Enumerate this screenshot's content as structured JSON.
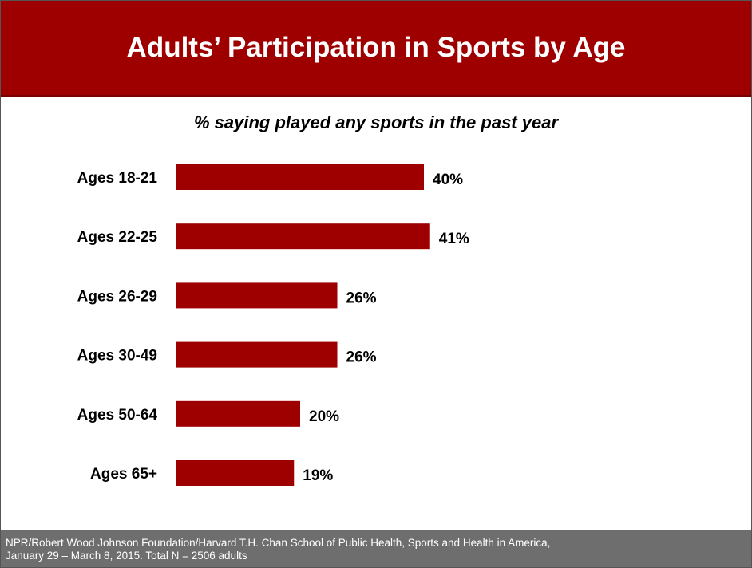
{
  "header": {
    "title": "Adults’ Participation in Sports by Age",
    "background": "#9e0000"
  },
  "chart_data": {
    "type": "bar",
    "orientation": "horizontal",
    "subtitle": "% saying played any sports in the past year",
    "categories": [
      "Ages 18-21",
      "Ages 22-25",
      "Ages 26-29",
      "Ages 30-49",
      "Ages 50-64",
      "Ages 65+"
    ],
    "values": [
      40,
      41,
      26,
      26,
      20,
      19
    ],
    "value_labels": [
      "40%",
      "41%",
      "26%",
      "26%",
      "20%",
      "19%"
    ],
    "bar_color": "#9e0000",
    "xlim": [
      0,
      100
    ],
    "grid": false,
    "legend": false
  },
  "footer": {
    "line1": "NPR/Robert Wood Johnson Foundation/Harvard T.H. Chan School of Public Health, Sports and Health in America,",
    "line2": "January 29 – March 8, 2015. Total N = 2506 adults"
  }
}
